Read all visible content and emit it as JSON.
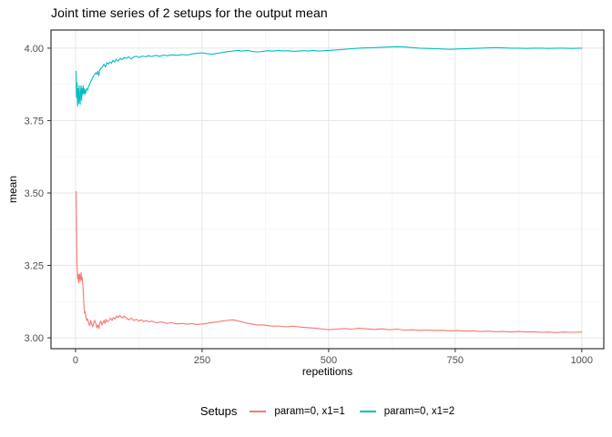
{
  "title": "Joint time series of 2 setups for the output mean",
  "axes": {
    "x": {
      "label": "repetitions",
      "ticks": [
        {
          "value": 0,
          "label": "0"
        },
        {
          "value": 250,
          "label": "250"
        },
        {
          "value": 500,
          "label": "500"
        },
        {
          "value": 750,
          "label": "750"
        },
        {
          "value": 1000,
          "label": "1000"
        }
      ],
      "minor_ticks": [
        125,
        375,
        625,
        875
      ]
    },
    "y": {
      "label": "mean",
      "ticks": [
        {
          "value": 3.0,
          "label": "3.00"
        },
        {
          "value": 3.25,
          "label": "3.25"
        },
        {
          "value": 3.5,
          "label": "3.50"
        },
        {
          "value": 3.75,
          "label": "3.75"
        },
        {
          "value": 4.0,
          "label": "4.00"
        }
      ],
      "minor_ticks": [
        3.125,
        3.375,
        3.625,
        3.875
      ]
    }
  },
  "legend": {
    "title": "Setups",
    "items": [
      {
        "label": "param=0, x1=1",
        "color": "#F8766D"
      },
      {
        "label": "param=0, x1=2",
        "color": "#00BFC4"
      }
    ]
  },
  "colors": {
    "grid_major": "#E6E6E6",
    "grid_minor": "#F3F3F3",
    "panel_border": "#333333",
    "tick": "#333333",
    "tick_label": "#4D4D4D",
    "series_red": "#F8766D",
    "series_teal": "#00BFC4"
  },
  "chart_data": {
    "type": "line",
    "title": "Joint time series of 2 setups for the output mean",
    "xlabel": "repetitions",
    "ylabel": "mean",
    "xlim": [
      -48.5,
      1043.5
    ],
    "ylim": [
      2.9625,
      4.0625
    ],
    "x_ticks": [
      0,
      250,
      500,
      750,
      1000
    ],
    "y_ticks": [
      3.0,
      3.25,
      3.5,
      3.75,
      4.0
    ],
    "grid": "on",
    "legend_position": "bottom",
    "series": [
      {
        "name": "param=0, x1=1",
        "color": "#F8766D",
        "points": [
          [
            1,
            3.505
          ],
          [
            2,
            3.37
          ],
          [
            3,
            3.25
          ],
          [
            4,
            3.205
          ],
          [
            5,
            3.22
          ],
          [
            6,
            3.19
          ],
          [
            7,
            3.215
          ],
          [
            8,
            3.22
          ],
          [
            9,
            3.195
          ],
          [
            10,
            3.21
          ],
          [
            11,
            3.225
          ],
          [
            12,
            3.2
          ],
          [
            13,
            3.21
          ],
          [
            14,
            3.19
          ],
          [
            15,
            3.17
          ],
          [
            16,
            3.13
          ],
          [
            17,
            3.1
          ],
          [
            18,
            3.085
          ],
          [
            19,
            3.09
          ],
          [
            20,
            3.075
          ],
          [
            22,
            3.06
          ],
          [
            24,
            3.065
          ],
          [
            26,
            3.05
          ],
          [
            28,
            3.042
          ],
          [
            30,
            3.06
          ],
          [
            32,
            3.048
          ],
          [
            34,
            3.038
          ],
          [
            36,
            3.052
          ],
          [
            38,
            3.06
          ],
          [
            40,
            3.05
          ],
          [
            42,
            3.035
          ],
          [
            44,
            3.045
          ],
          [
            46,
            3.032
          ],
          [
            48,
            3.05
          ],
          [
            50,
            3.058
          ],
          [
            52,
            3.045
          ],
          [
            54,
            3.052
          ],
          [
            56,
            3.06
          ],
          [
            58,
            3.05
          ],
          [
            60,
            3.064
          ],
          [
            63,
            3.055
          ],
          [
            66,
            3.06
          ],
          [
            69,
            3.068
          ],
          [
            72,
            3.06
          ],
          [
            75,
            3.07
          ],
          [
            78,
            3.065
          ],
          [
            81,
            3.075
          ],
          [
            84,
            3.07
          ],
          [
            87,
            3.078
          ],
          [
            90,
            3.072
          ],
          [
            93,
            3.068
          ],
          [
            96,
            3.075
          ],
          [
            100,
            3.07
          ],
          [
            105,
            3.062
          ],
          [
            110,
            3.068
          ],
          [
            115,
            3.06
          ],
          [
            120,
            3.064
          ],
          [
            125,
            3.058
          ],
          [
            130,
            3.062
          ],
          [
            135,
            3.056
          ],
          [
            140,
            3.06
          ],
          [
            145,
            3.055
          ],
          [
            150,
            3.058
          ],
          [
            160,
            3.052
          ],
          [
            170,
            3.055
          ],
          [
            180,
            3.05
          ],
          [
            190,
            3.052
          ],
          [
            200,
            3.048
          ],
          [
            210,
            3.05
          ],
          [
            220,
            3.047
          ],
          [
            230,
            3.049
          ],
          [
            240,
            3.046
          ],
          [
            250,
            3.048
          ],
          [
            260,
            3.05
          ],
          [
            270,
            3.053
          ],
          [
            280,
            3.055
          ],
          [
            290,
            3.058
          ],
          [
            300,
            3.06
          ],
          [
            310,
            3.062
          ],
          [
            320,
            3.059
          ],
          [
            330,
            3.055
          ],
          [
            340,
            3.05
          ],
          [
            350,
            3.047
          ],
          [
            360,
            3.044
          ],
          [
            370,
            3.045
          ],
          [
            380,
            3.042
          ],
          [
            390,
            3.04
          ],
          [
            400,
            3.041
          ],
          [
            415,
            3.038
          ],
          [
            430,
            3.04
          ],
          [
            445,
            3.037
          ],
          [
            460,
            3.035
          ],
          [
            475,
            3.033
          ],
          [
            490,
            3.03
          ],
          [
            500,
            3.028
          ],
          [
            515,
            3.03
          ],
          [
            530,
            3.032
          ],
          [
            545,
            3.03
          ],
          [
            560,
            3.033
          ],
          [
            575,
            3.031
          ],
          [
            590,
            3.029
          ],
          [
            605,
            3.031
          ],
          [
            620,
            3.028
          ],
          [
            635,
            3.03
          ],
          [
            650,
            3.027
          ],
          [
            665,
            3.028
          ],
          [
            680,
            3.026
          ],
          [
            695,
            3.027
          ],
          [
            710,
            3.025
          ],
          [
            725,
            3.026
          ],
          [
            740,
            3.024
          ],
          [
            755,
            3.025
          ],
          [
            770,
            3.023
          ],
          [
            785,
            3.024
          ],
          [
            800,
            3.022
          ],
          [
            815,
            3.023
          ],
          [
            830,
            3.021
          ],
          [
            845,
            3.022
          ],
          [
            860,
            3.02
          ],
          [
            875,
            3.022
          ],
          [
            890,
            3.02
          ],
          [
            905,
            3.021
          ],
          [
            920,
            3.019
          ],
          [
            935,
            3.02
          ],
          [
            950,
            3.018
          ],
          [
            965,
            3.02
          ],
          [
            980,
            3.019
          ],
          [
            1000,
            3.02
          ]
        ]
      },
      {
        "name": "param=0, x1=2",
        "color": "#00BFC4",
        "points": [
          [
            1,
            3.92
          ],
          [
            2,
            3.83
          ],
          [
            3,
            3.88
          ],
          [
            4,
            3.8
          ],
          [
            5,
            3.86
          ],
          [
            6,
            3.81
          ],
          [
            7,
            3.87
          ],
          [
            8,
            3.83
          ],
          [
            9,
            3.805
          ],
          [
            10,
            3.85
          ],
          [
            11,
            3.87
          ],
          [
            12,
            3.82
          ],
          [
            13,
            3.86
          ],
          [
            14,
            3.84
          ],
          [
            15,
            3.87
          ],
          [
            16,
            3.845
          ],
          [
            17,
            3.86
          ],
          [
            18,
            3.84
          ],
          [
            19,
            3.855
          ],
          [
            20,
            3.845
          ],
          [
            22,
            3.86
          ],
          [
            24,
            3.855
          ],
          [
            26,
            3.87
          ],
          [
            28,
            3.875
          ],
          [
            30,
            3.885
          ],
          [
            32,
            3.89
          ],
          [
            34,
            3.9
          ],
          [
            36,
            3.905
          ],
          [
            38,
            3.91
          ],
          [
            40,
            3.915
          ],
          [
            42,
            3.91
          ],
          [
            44,
            3.92
          ],
          [
            46,
            3.905
          ],
          [
            48,
            3.925
          ],
          [
            50,
            3.93
          ],
          [
            53,
            3.935
          ],
          [
            56,
            3.945
          ],
          [
            59,
            3.935
          ],
          [
            62,
            3.95
          ],
          [
            65,
            3.945
          ],
          [
            68,
            3.952
          ],
          [
            71,
            3.948
          ],
          [
            74,
            3.958
          ],
          [
            77,
            3.952
          ],
          [
            80,
            3.962
          ],
          [
            84,
            3.955
          ],
          [
            88,
            3.965
          ],
          [
            92,
            3.96
          ],
          [
            96,
            3.968
          ],
          [
            100,
            3.965
          ],
          [
            105,
            3.97
          ],
          [
            110,
            3.963
          ],
          [
            115,
            3.97
          ],
          [
            120,
            3.972
          ],
          [
            126,
            3.968
          ],
          [
            132,
            3.973
          ],
          [
            138,
            3.97
          ],
          [
            144,
            3.974
          ],
          [
            150,
            3.971
          ],
          [
            158,
            3.975
          ],
          [
            166,
            3.972
          ],
          [
            174,
            3.976
          ],
          [
            182,
            3.974
          ],
          [
            190,
            3.977
          ],
          [
            200,
            3.975
          ],
          [
            210,
            3.978
          ],
          [
            220,
            3.976
          ],
          [
            230,
            3.98
          ],
          [
            240,
            3.982
          ],
          [
            250,
            3.984
          ],
          [
            260,
            3.981
          ],
          [
            270,
            3.979
          ],
          [
            280,
            3.982
          ],
          [
            290,
            3.985
          ],
          [
            300,
            3.988
          ],
          [
            310,
            3.99
          ],
          [
            320,
            3.992
          ],
          [
            330,
            3.99
          ],
          [
            340,
            3.992
          ],
          [
            350,
            3.988
          ],
          [
            360,
            3.987
          ],
          [
            370,
            3.989
          ],
          [
            380,
            3.991
          ],
          [
            390,
            3.99
          ],
          [
            400,
            3.992
          ],
          [
            410,
            3.99
          ],
          [
            420,
            3.991
          ],
          [
            430,
            3.989
          ],
          [
            440,
            3.99
          ],
          [
            450,
            3.991
          ],
          [
            460,
            3.99
          ],
          [
            470,
            3.992
          ],
          [
            480,
            3.99
          ],
          [
            490,
            3.991
          ],
          [
            500,
            3.992
          ],
          [
            515,
            3.994
          ],
          [
            530,
            3.996
          ],
          [
            545,
            3.998
          ],
          [
            560,
            4.0
          ],
          [
            575,
            4.001
          ],
          [
            590,
            4.002
          ],
          [
            605,
            4.003
          ],
          [
            620,
            4.004
          ],
          [
            635,
            4.005
          ],
          [
            650,
            4.004
          ],
          [
            665,
            4.002
          ],
          [
            680,
            4.0
          ],
          [
            695,
            3.999
          ],
          [
            710,
            3.998
          ],
          [
            725,
            3.997
          ],
          [
            740,
            3.996
          ],
          [
            755,
            3.997
          ],
          [
            770,
            3.998
          ],
          [
            785,
            3.999
          ],
          [
            800,
            4.0
          ],
          [
            815,
            4.001
          ],
          [
            830,
            4.002
          ],
          [
            845,
            4.001
          ],
          [
            860,
            4.0
          ],
          [
            875,
            4.0
          ],
          [
            890,
            3.999
          ],
          [
            905,
            4.0
          ],
          [
            920,
            4.0
          ],
          [
            935,
            3.999
          ],
          [
            950,
            4.0
          ],
          [
            965,
            4.0
          ],
          [
            980,
            3.999
          ],
          [
            1000,
            4.0
          ]
        ]
      }
    ]
  }
}
